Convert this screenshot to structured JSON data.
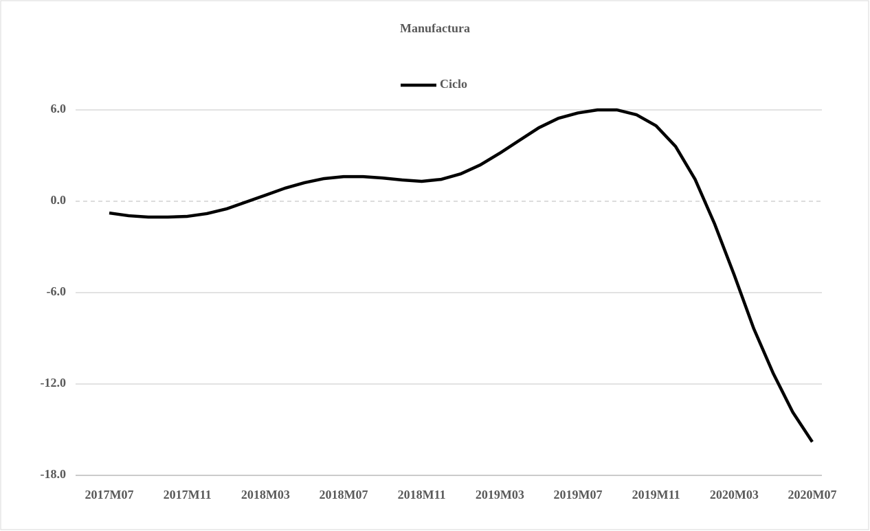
{
  "chart_data": {
    "type": "line",
    "title": "Manufactura",
    "categories": [
      "2017M07",
      null,
      null,
      null,
      "2017M11",
      null,
      null,
      null,
      "2018M03",
      null,
      null,
      null,
      "2018M07",
      null,
      null,
      null,
      "2018M11",
      null,
      null,
      null,
      "2019M03",
      null,
      null,
      null,
      "2019M07",
      null,
      null,
      null,
      "2019M11",
      null,
      null,
      null,
      "2020M03",
      null,
      null,
      null,
      "2020M07"
    ],
    "series": [
      {
        "name": "Ciclo",
        "color": "#000000",
        "values": [
          -0.77,
          -0.95,
          -1.04,
          -1.04,
          -0.99,
          -0.81,
          -0.5,
          -0.05,
          0.4,
          0.86,
          1.22,
          1.49,
          1.62,
          1.62,
          1.53,
          1.4,
          1.31,
          1.44,
          1.8,
          2.39,
          3.16,
          4.0,
          4.83,
          5.45,
          5.8,
          6.0,
          6.0,
          5.68,
          4.96,
          3.6,
          1.44,
          -1.49,
          -4.83,
          -8.35,
          -11.3,
          -13.85,
          -15.8
        ]
      }
    ],
    "ylim": [
      -18,
      6
    ],
    "yticks": [
      {
        "value": -18,
        "label": "-18.0"
      },
      {
        "value": -12,
        "label": "-12.0"
      },
      {
        "value": -6,
        "label": "-6.0"
      },
      {
        "value": 0,
        "label": "0.0"
      },
      {
        "value": 6,
        "label": "6.0"
      }
    ],
    "grid": true,
    "legend": "top"
  }
}
